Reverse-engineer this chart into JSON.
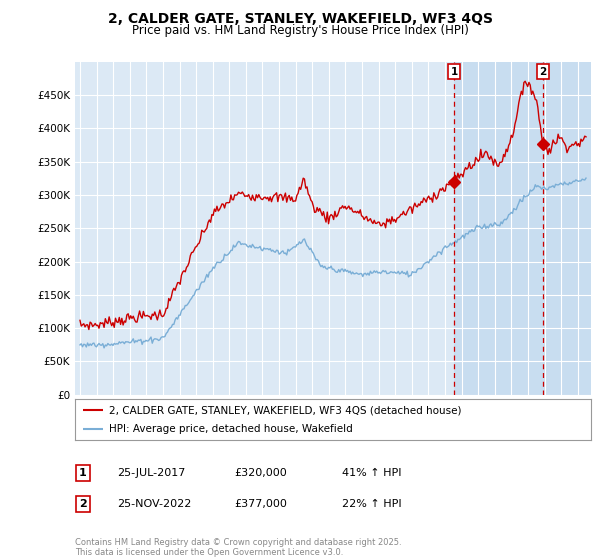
{
  "title": "2, CALDER GATE, STANLEY, WAKEFIELD, WF3 4QS",
  "subtitle": "Price paid vs. HM Land Registry's House Price Index (HPI)",
  "title_fontsize": 10,
  "subtitle_fontsize": 8.5,
  "background_color": "#ffffff",
  "plot_bg_color": "#dce9f5",
  "highlight_bg_color": "#c8ddf0",
  "grid_color": "#ffffff",
  "red_line_color": "#cc0000",
  "blue_line_color": "#7aaed6",
  "vline_color": "#cc0000",
  "ylim": [
    0,
    500000
  ],
  "yticks": [
    0,
    50000,
    100000,
    150000,
    200000,
    250000,
    300000,
    350000,
    400000,
    450000
  ],
  "xlim_left": 1994.7,
  "xlim_right": 2025.8,
  "marker1_x": 2017.55,
  "marker1_y": 320000,
  "marker2_x": 2022.9,
  "marker2_y": 377000,
  "vline1_x": 2017.55,
  "vline2_x": 2022.9,
  "legend_label_red": "2, CALDER GATE, STANLEY, WAKEFIELD, WF3 4QS (detached house)",
  "legend_label_blue": "HPI: Average price, detached house, Wakefield",
  "note1_date": "25-JUL-2017",
  "note1_price": "£320,000",
  "note1_hpi": "41% ↑ HPI",
  "note2_date": "25-NOV-2022",
  "note2_price": "£377,000",
  "note2_hpi": "22% ↑ HPI",
  "footer": "Contains HM Land Registry data © Crown copyright and database right 2025.\nThis data is licensed under the Open Government Licence v3.0."
}
